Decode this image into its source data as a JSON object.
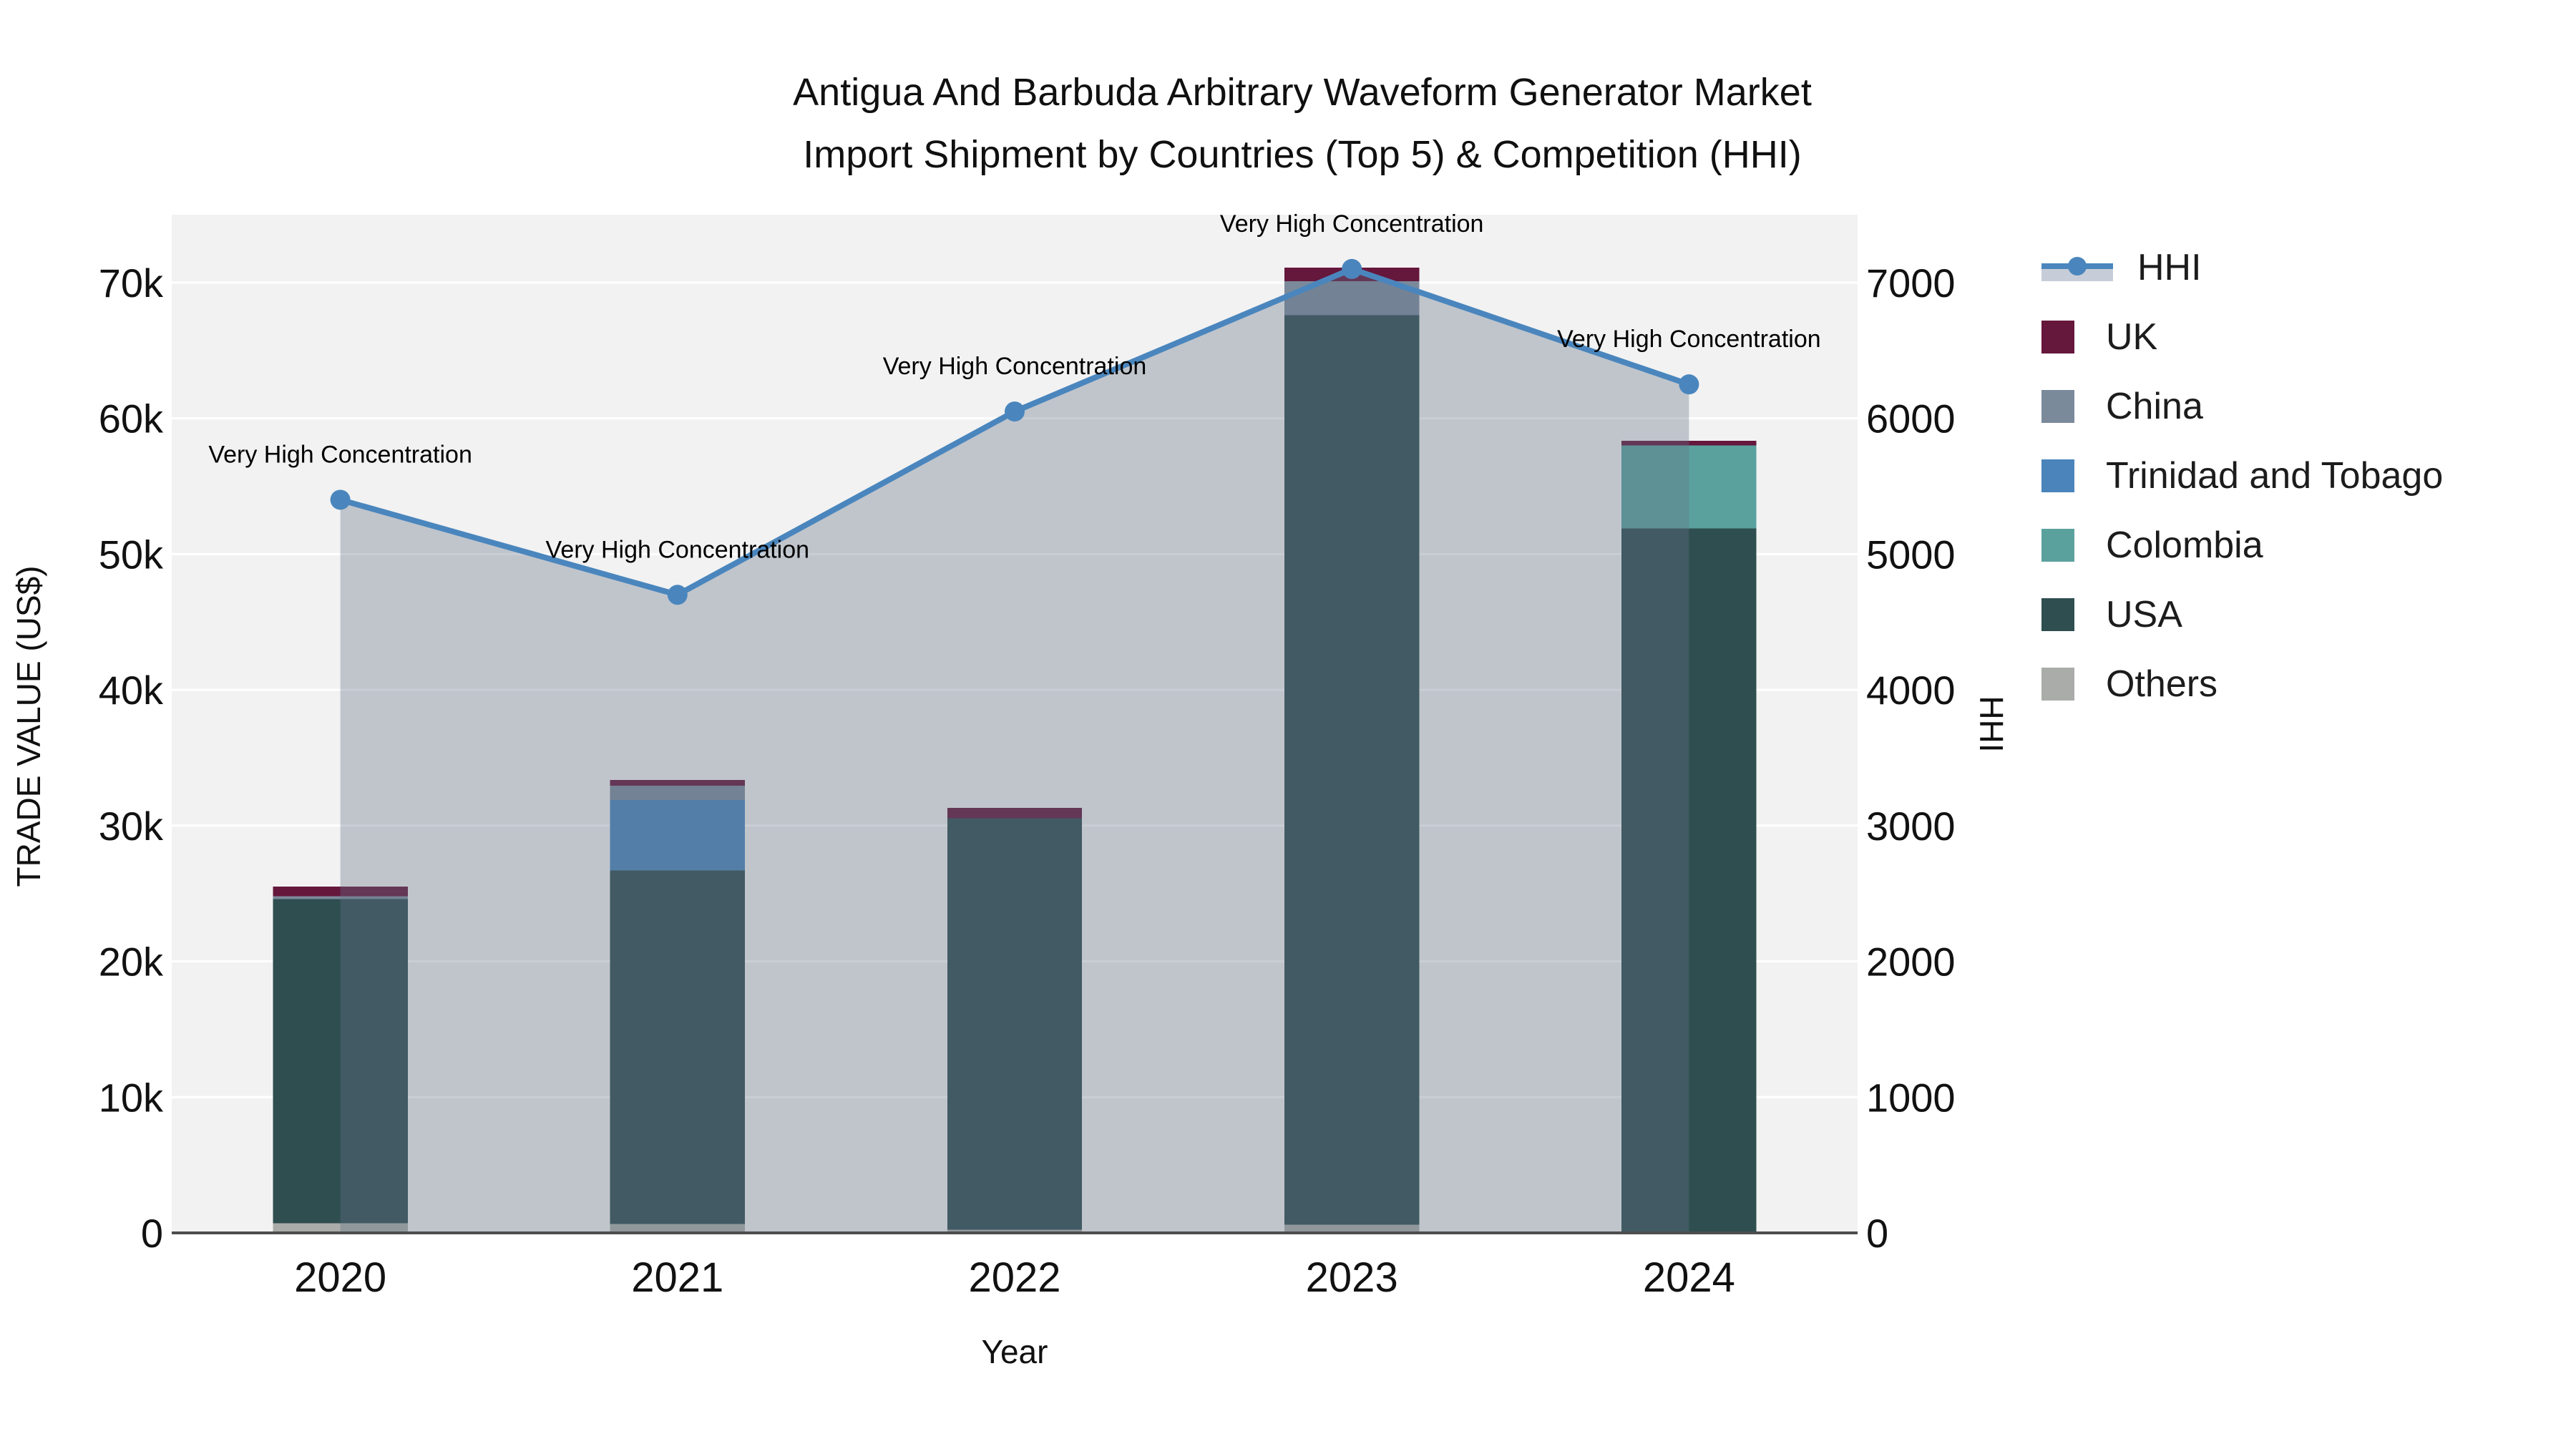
{
  "title": {
    "line1": "Antigua And Barbuda Arbitrary Waveform Generator Market",
    "line2": "Import Shipment by Countries (Top 5) & Competition (HHI)"
  },
  "axes": {
    "x": {
      "title": "Year",
      "tick_labels": [
        "2020",
        "2021",
        "2022",
        "2023",
        "2024"
      ]
    },
    "y_left": {
      "title": "TRADE VALUE (US$)",
      "tick_labels": [
        "0",
        "10k",
        "20k",
        "30k",
        "40k",
        "50k",
        "60k",
        "70k"
      ],
      "tick_values": [
        0,
        10000,
        20000,
        30000,
        40000,
        50000,
        60000,
        70000
      ],
      "max": 75000
    },
    "y_right": {
      "title": "HHI",
      "tick_labels": [
        "0",
        "1000",
        "2000",
        "3000",
        "4000",
        "5000",
        "6000",
        "7000"
      ],
      "tick_values": [
        0,
        1000,
        2000,
        3000,
        4000,
        5000,
        6000,
        7000
      ],
      "max": 7500
    }
  },
  "legend": [
    {
      "name": "HHI",
      "type": "line",
      "color": "#4a86bd"
    },
    {
      "name": "UK",
      "type": "swatch",
      "color": "#65173c"
    },
    {
      "name": "China",
      "type": "swatch",
      "color": "#7b8a9b"
    },
    {
      "name": "Trinidad and Tobago",
      "type": "swatch",
      "color": "#4a84ba"
    },
    {
      "name": "Colombia",
      "type": "swatch",
      "color": "#5aa19e"
    },
    {
      "name": "USA",
      "type": "swatch",
      "color": "#2e4e50"
    },
    {
      "name": "Others",
      "type": "swatch",
      "color": "#a9aca8"
    }
  ],
  "colors": {
    "page_background": "#ffffff",
    "plot_background": "#f2f2f2",
    "gridline": "#ffffff",
    "axis_line": "#4d4d4d",
    "annotation_text": "#000000",
    "hhi_line": "#4a86bd",
    "hhi_area_fill": "rgba(100,116,136,0.35)"
  },
  "chart_data": {
    "type": [
      "bar",
      "line"
    ],
    "categories": [
      "2020",
      "2021",
      "2022",
      "2023",
      "2024"
    ],
    "bar_stack_order_bottom_to_top": [
      "Others",
      "USA",
      "Colombia",
      "Trinidad and Tobago",
      "China",
      "UK"
    ],
    "series": [
      {
        "name": "Others",
        "color": "#a9aca8",
        "values": [
          700,
          650,
          250,
          600,
          0
        ]
      },
      {
        "name": "USA",
        "color": "#2e4e50",
        "values": [
          23900,
          26050,
          30300,
          67000,
          51900
        ]
      },
      {
        "name": "Colombia",
        "color": "#5aa19e",
        "values": [
          0,
          0,
          0,
          0,
          6100
        ]
      },
      {
        "name": "Trinidad and Tobago",
        "color": "#4a84ba",
        "values": [
          0,
          5200,
          0,
          0,
          0
        ]
      },
      {
        "name": "China",
        "color": "#7b8a9b",
        "values": [
          200,
          1050,
          0,
          2500,
          0
        ]
      },
      {
        "name": "UK",
        "color": "#65173c",
        "values": [
          700,
          400,
          750,
          1000,
          350
        ]
      }
    ],
    "bar_totals": [
      25500,
      33350,
      31300,
      71100,
      58350
    ],
    "line_series": {
      "name": "HHI",
      "color": "#4a86bd",
      "area_fill": "rgba(100,116,136,0.35)",
      "values": [
        5400,
        4700,
        6050,
        7100,
        6250
      ]
    },
    "annotations": [
      {
        "x": "2020",
        "text": "Very High Concentration"
      },
      {
        "x": "2021",
        "text": "Very High Concentration"
      },
      {
        "x": "2022",
        "text": "Very High Concentration"
      },
      {
        "x": "2023",
        "text": "Very High Concentration"
      },
      {
        "x": "2024",
        "text": "Very High Concentration"
      }
    ],
    "ylim_left": [
      0,
      75000
    ],
    "ylim_right": [
      0,
      7500
    ],
    "grid": true,
    "legend_position": "right"
  }
}
